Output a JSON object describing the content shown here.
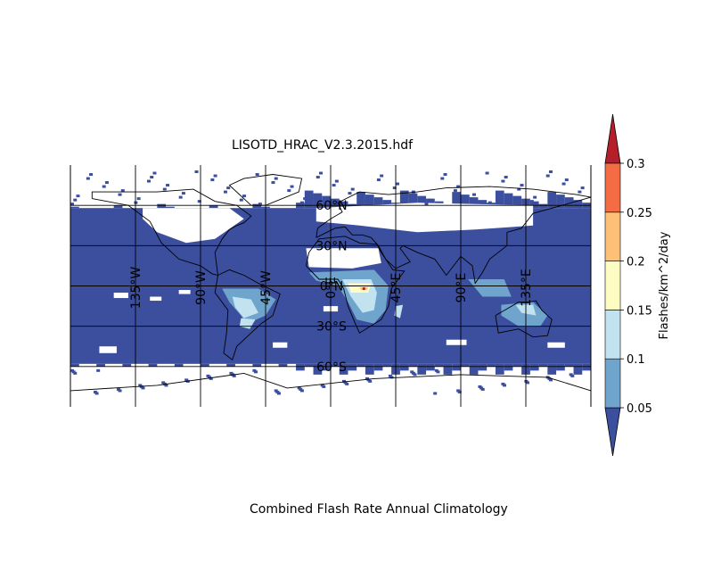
{
  "chart_data": {
    "type": "heatmap",
    "title": "LISOTD_HRAC_V2.3.2015.hdf",
    "subtitle": "Combined Flash Rate Annual Climatology",
    "projection": "cylindrical",
    "x": {
      "label": "",
      "range": [
        -180,
        180
      ]
    },
    "y": {
      "label": "",
      "range": [
        -90,
        90
      ]
    },
    "meridians": [
      {
        "value": -135,
        "label": "135°W"
      },
      {
        "value": -90,
        "label": "90°W"
      },
      {
        "value": -45,
        "label": "45°W"
      },
      {
        "value": 0,
        "label": "0°E"
      },
      {
        "value": 45,
        "label": "45°E"
      },
      {
        "value": 90,
        "label": "90°E"
      },
      {
        "value": 135,
        "label": "135°E"
      }
    ],
    "parallels": [
      {
        "value": 60,
        "label": "60°N"
      },
      {
        "value": 30,
        "label": "30°N"
      },
      {
        "value": 0,
        "label": "0°N"
      },
      {
        "value": -30,
        "label": "30°S"
      },
      {
        "value": -60,
        "label": "60°S"
      }
    ],
    "colorbar": {
      "label": "Flashes/km^2/day",
      "ticks": [
        "0.05",
        "0.1",
        "0.15",
        "0.2",
        "0.25",
        "0.3"
      ],
      "bins": [
        {
          "range": "<0.05",
          "color": "#3b4f9e"
        },
        {
          "range": "0.05-0.1",
          "color": "#6fa4cd"
        },
        {
          "range": "0.1-0.15",
          "color": "#c1e2ee"
        },
        {
          "range": "0.15-0.2",
          "color": "#fefcc2"
        },
        {
          "range": "0.2-0.25",
          "color": "#fdc077"
        },
        {
          "range": "0.25-0.3",
          "color": "#f46c43"
        },
        {
          "range": ">0.3",
          "color": "#b51f2b"
        }
      ],
      "extend": "both"
    },
    "regions": [
      {
        "name": "South America",
        "value": "0.05-0.15"
      },
      {
        "name": "Central Africa",
        "value": "0.15-0.3"
      },
      {
        "name": "Northern Australia",
        "value": "0.05-0.15"
      }
    ]
  }
}
